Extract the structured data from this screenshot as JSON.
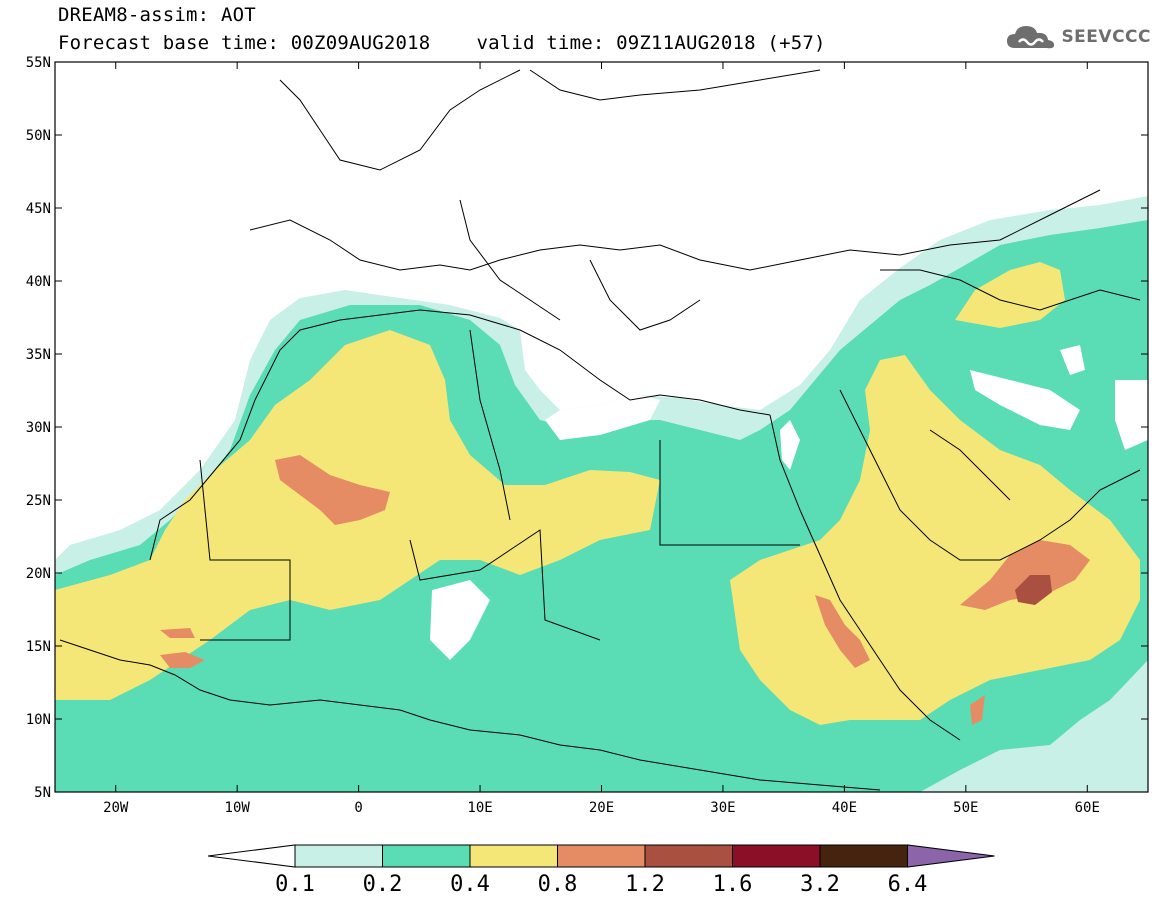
{
  "header": {
    "title": "DREAM8-assim: AOT",
    "base_time": "Forecast base time: 00Z09AUG2018",
    "valid_time": "valid time: 09Z11AUG2018 (+57)",
    "logo_text": "SEEVCCC"
  },
  "map": {
    "lon_range": [
      -25,
      65
    ],
    "lat_range": [
      5,
      55
    ],
    "lat_ticks": [
      "5N",
      "10N",
      "15N",
      "20N",
      "25N",
      "30N",
      "35N",
      "40N",
      "45N",
      "50N",
      "55N"
    ],
    "lon_ticks": [
      "20W",
      "10W",
      "0",
      "10E",
      "20E",
      "30E",
      "40E",
      "50E",
      "60E"
    ],
    "coastline_color": "#000000"
  },
  "colorbar": {
    "levels": [
      "0.1",
      "0.2",
      "0.4",
      "0.8",
      "1.2",
      "1.6",
      "3.2",
      "6.4"
    ],
    "colors": [
      "#ffffff",
      "#c8f0e6",
      "#5adcb4",
      "#f5e678",
      "#e68c64",
      "#aa5041",
      "#8c0f28",
      "#46230f",
      "#8c64aa"
    ]
  }
}
